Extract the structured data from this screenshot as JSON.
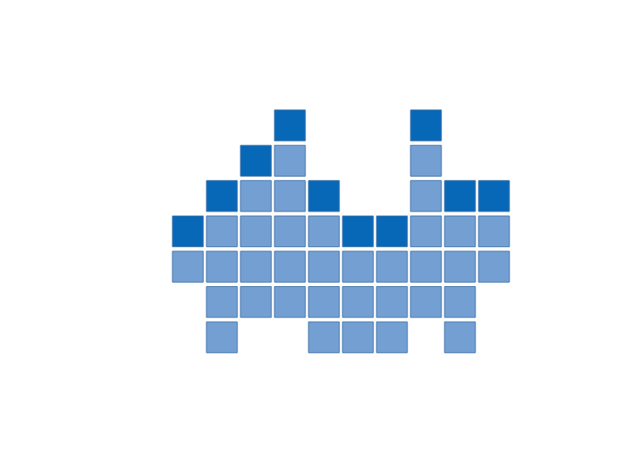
{
  "chart_data": {
    "type": "waffle",
    "cells": [
      [
        0,
        0,
        0,
        2,
        0,
        0,
        0,
        2,
        0,
        0
      ],
      [
        0,
        0,
        2,
        1,
        0,
        0,
        0,
        1,
        0,
        0
      ],
      [
        0,
        2,
        1,
        1,
        2,
        0,
        0,
        1,
        2,
        2
      ],
      [
        2,
        1,
        1,
        1,
        1,
        2,
        2,
        1,
        1,
        1
      ],
      [
        1,
        1,
        1,
        1,
        1,
        1,
        1,
        1,
        1,
        1
      ],
      [
        0,
        1,
        1,
        1,
        1,
        1,
        1,
        1,
        1,
        0
      ],
      [
        0,
        1,
        0,
        0,
        1,
        1,
        1,
        0,
        1,
        0
      ]
    ],
    "colors": [
      "#739fd2",
      "#0868b8"
    ],
    "tick_labels": false
  }
}
